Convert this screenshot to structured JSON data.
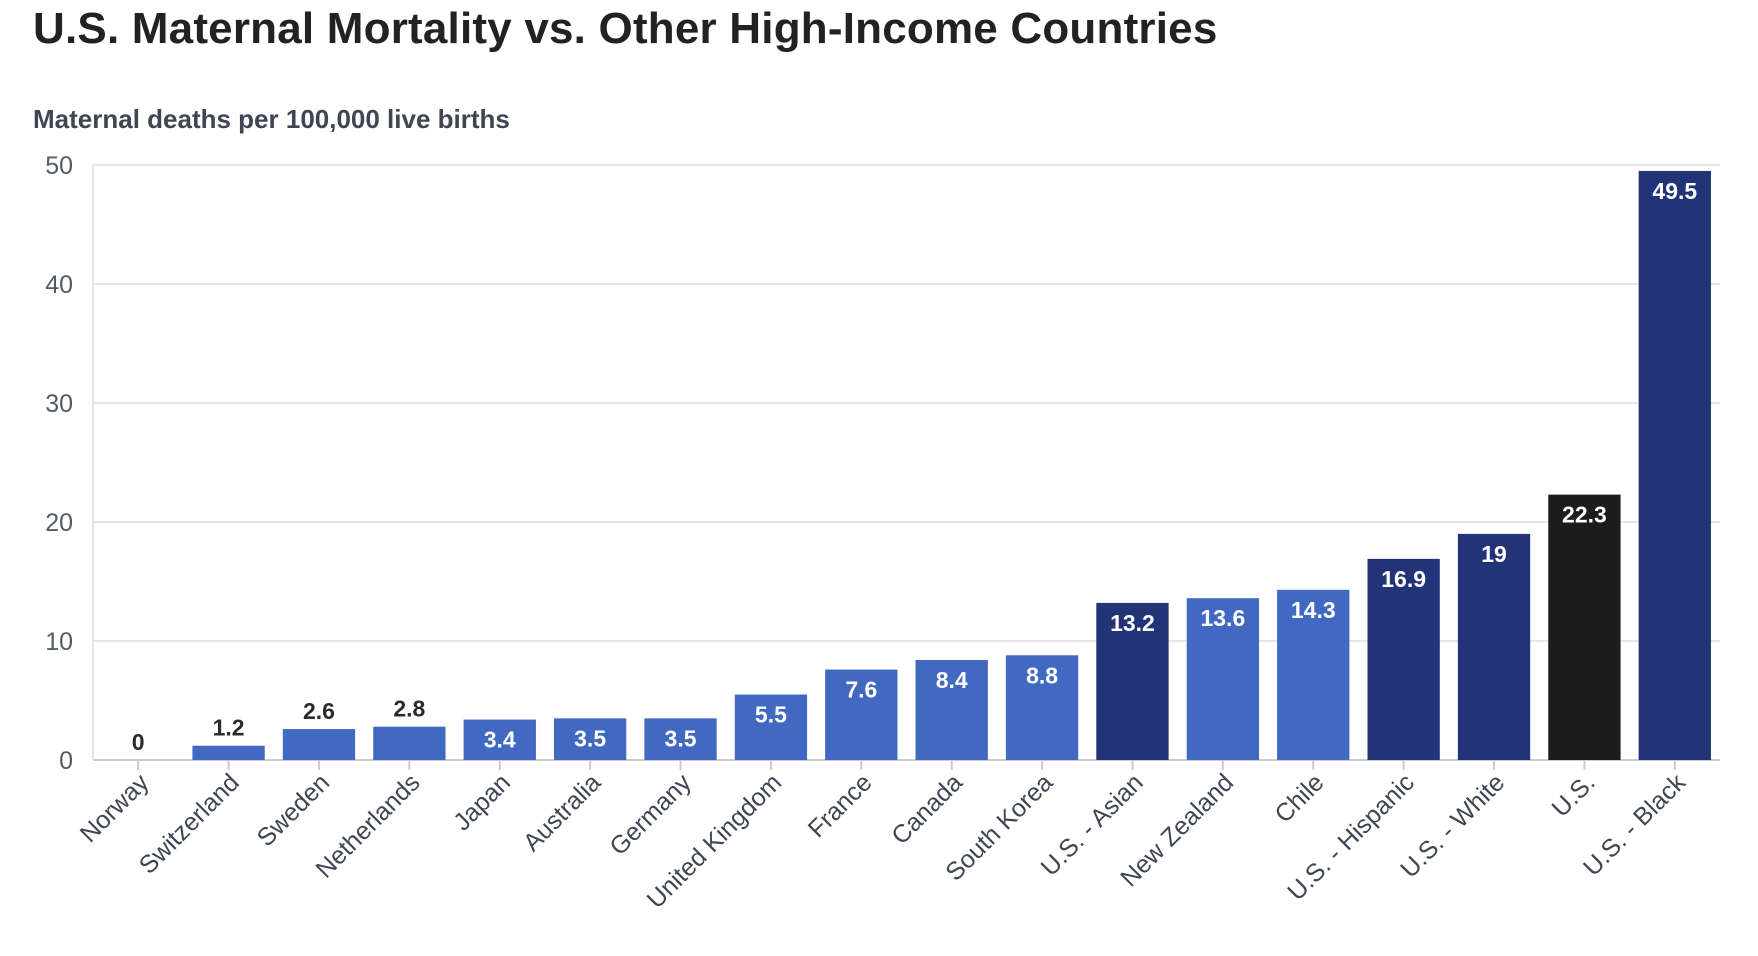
{
  "header": {
    "title": "U.S. Maternal Mortality vs. Other High-Income Countries",
    "subtitle": "Maternal deaths per 100,000 live births"
  },
  "colors": {
    "country": "#4169c1",
    "us_group": "#223477",
    "us_total": "#1c1c1c",
    "grid": "#e6e6e6",
    "axis": "#cccccc"
  },
  "chart_data": {
    "type": "bar",
    "title": "U.S. Maternal Mortality vs. Other High-Income Countries",
    "ylabel": "Maternal deaths per 100,000 live births",
    "xlabel": "",
    "ylim": [
      0,
      50
    ],
    "yticks": [
      0,
      10,
      20,
      30,
      40,
      50
    ],
    "grid": true,
    "categories": [
      "Norway",
      "Switzerland",
      "Sweden",
      "Netherlands",
      "Japan",
      "Australia",
      "Germany",
      "United Kingdom",
      "France",
      "Canada",
      "South Korea",
      "U.S. - Asian",
      "New Zealand",
      "Chile",
      "U.S. - Hispanic",
      "U.S. - White",
      "U.S.",
      "U.S. - Black"
    ],
    "values": [
      0,
      1.2,
      2.6,
      2.8,
      3.4,
      3.5,
      3.5,
      5.5,
      7.6,
      8.4,
      8.8,
      13.2,
      13.6,
      14.3,
      16.9,
      19,
      22.3,
      49.5
    ],
    "labels": [
      "0",
      "1.2",
      "2.6",
      "2.8",
      "3.4",
      "3.5",
      "3.5",
      "5.5",
      "7.6",
      "8.4",
      "8.8",
      "13.2",
      "13.6",
      "14.3",
      "16.9",
      "19",
      "22.3",
      "49.5"
    ],
    "groups": [
      "country",
      "country",
      "country",
      "country",
      "country",
      "country",
      "country",
      "country",
      "country",
      "country",
      "country",
      "us_group",
      "country",
      "country",
      "us_group",
      "us_group",
      "us_total",
      "us_group"
    ]
  }
}
